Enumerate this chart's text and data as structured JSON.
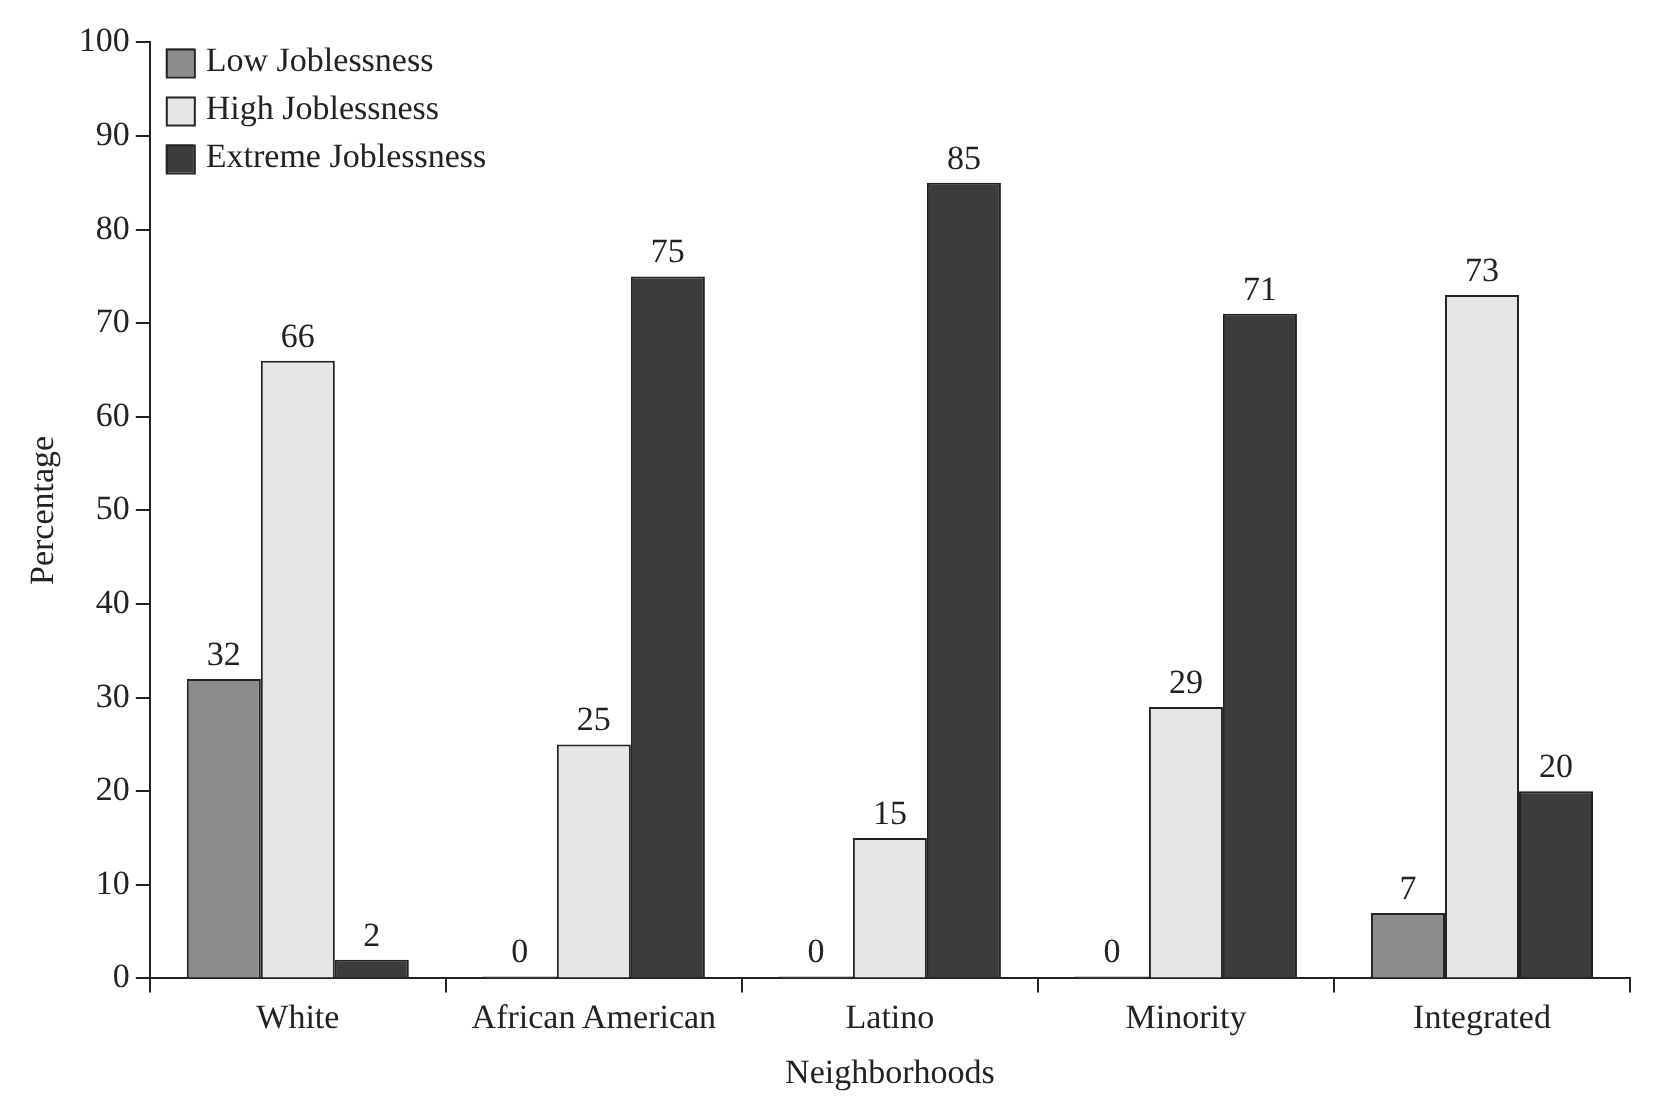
{
  "chart_data": {
    "type": "bar",
    "xlabel": "Neighborhoods",
    "ylabel": "Percentage",
    "categories": [
      "White",
      "African American",
      "Latino",
      "Minority",
      "Integrated"
    ],
    "series": [
      {
        "name": "Low Joblessness",
        "color": "#8c8c8c",
        "values": [
          32,
          0,
          0,
          0,
          7
        ]
      },
      {
        "name": "High Joblessness",
        "color": "#e6e6e6",
        "values": [
          66,
          25,
          15,
          29,
          73
        ]
      },
      {
        "name": "Extreme Joblessness",
        "color": "#3c3c3c",
        "values": [
          2,
          75,
          85,
          71,
          20
        ]
      }
    ],
    "ylim": [
      0,
      100
    ],
    "yticks": [
      0,
      10,
      20,
      30,
      40,
      50,
      60,
      70,
      80,
      90,
      100
    ],
    "legend": "top left",
    "data_labels": true
  }
}
